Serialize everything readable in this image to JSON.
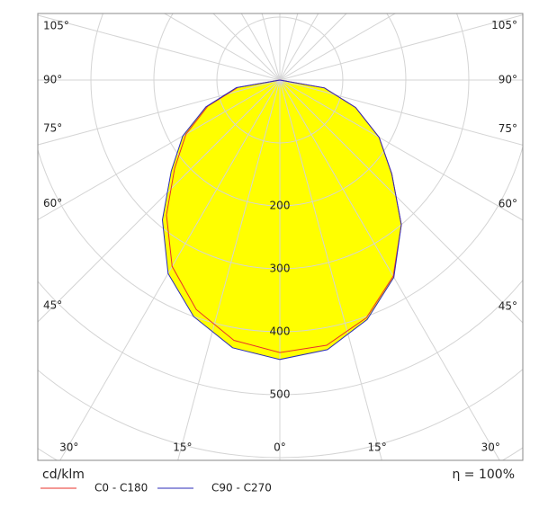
{
  "chart_data": {
    "type": "polar",
    "unit_label": "cd/klm",
    "efficiency_label": "η = 100%",
    "angles": [
      -90,
      -80,
      -70,
      -60,
      -50,
      -40,
      -30,
      -20,
      -10,
      0,
      10,
      20,
      30,
      40,
      50,
      60,
      70,
      80,
      90
    ],
    "series": [
      {
        "name": "C0 - C180",
        "color": "#e8312a",
        "values": [
          0,
          68,
          122,
          172,
          218,
          280,
          342,
          388,
          420,
          433,
          428,
          402,
          360,
          300,
          232,
          182,
          128,
          72,
          0
        ]
      },
      {
        "name": "C90 - C270",
        "color": "#2b2bb8",
        "values": [
          0,
          70,
          125,
          178,
          225,
          290,
          355,
          400,
          432,
          444,
          435,
          405,
          362,
          300,
          232,
          182,
          128,
          72,
          0
        ]
      }
    ],
    "area_color": "#ffff00",
    "rlim": [
      0,
      700
    ],
    "rticks": [
      200,
      300,
      400,
      500
    ],
    "angle_ticks": [
      {
        "value": -105,
        "label": "105°"
      },
      {
        "value": -90,
        "label": "90°"
      },
      {
        "value": -75,
        "label": "75°"
      },
      {
        "value": -60,
        "label": "60°"
      },
      {
        "value": -45,
        "label": "45°"
      },
      {
        "value": -30,
        "label": "30°"
      },
      {
        "value": -15,
        "label": "15°"
      },
      {
        "value": 0,
        "label": "0°"
      },
      {
        "value": 15,
        "label": "15°"
      },
      {
        "value": 30,
        "label": "30°"
      },
      {
        "value": 45,
        "label": "45°"
      },
      {
        "value": 60,
        "label": "60°"
      },
      {
        "value": 75,
        "label": "75°"
      },
      {
        "value": 90,
        "label": "90°"
      },
      {
        "value": 105,
        "label": "105°"
      }
    ],
    "grid": true
  }
}
